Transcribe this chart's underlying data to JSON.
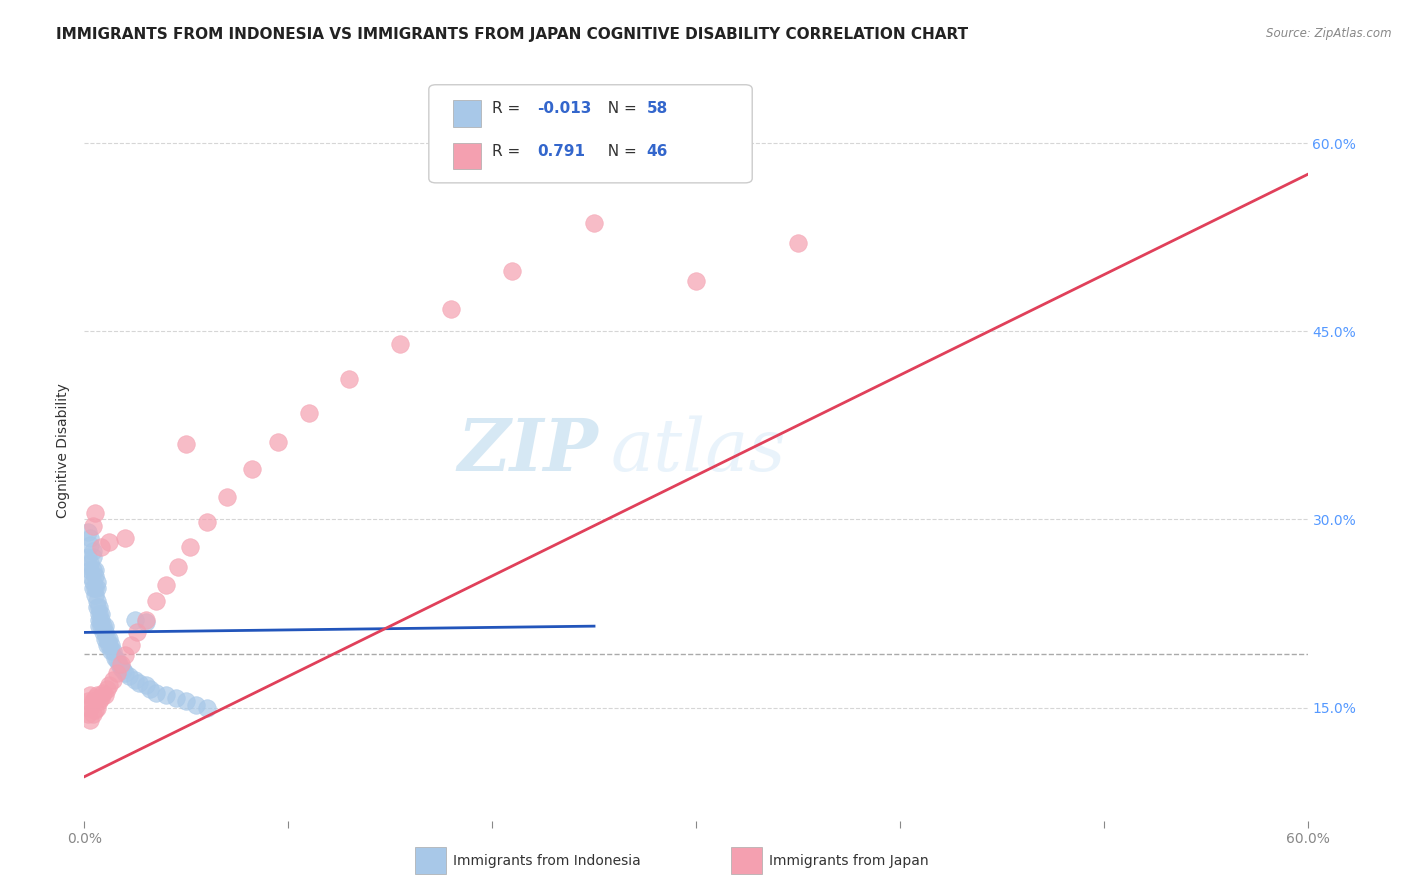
{
  "title": "IMMIGRANTS FROM INDONESIA VS IMMIGRANTS FROM JAPAN COGNITIVE DISABILITY CORRELATION CHART",
  "source": "Source: ZipAtlas.com",
  "ylabel": "Cognitive Disability",
  "xlim": [
    0.0,
    0.6
  ],
  "ylim": [
    0.06,
    0.65
  ],
  "ytick_labels_right": [
    "15.0%",
    "30.0%",
    "45.0%",
    "60.0%"
  ],
  "ytick_positions_right": [
    0.15,
    0.3,
    0.45,
    0.6
  ],
  "indonesia_color": "#a8c8e8",
  "japan_color": "#f4a0b0",
  "indonesia_line_color": "#2255bb",
  "japan_line_color": "#e0405a",
  "indonesia_R": -0.013,
  "indonesia_N": 58,
  "japan_R": 0.791,
  "japan_N": 46,
  "legend_label_indonesia": "Immigrants from Indonesia",
  "legend_label_japan": "Immigrants from Japan",
  "watermark_zip": "ZIP",
  "watermark_atlas": "atlas",
  "grid_color": "#cccccc",
  "background_color": "#ffffff",
  "title_fontsize": 11,
  "axis_label_fontsize": 10,
  "tick_fontsize": 10,
  "indo_scatter_x": [
    0.002,
    0.002,
    0.003,
    0.003,
    0.003,
    0.003,
    0.003,
    0.004,
    0.004,
    0.004,
    0.004,
    0.004,
    0.005,
    0.005,
    0.005,
    0.005,
    0.006,
    0.006,
    0.006,
    0.006,
    0.007,
    0.007,
    0.007,
    0.007,
    0.008,
    0.008,
    0.008,
    0.009,
    0.009,
    0.01,
    0.01,
    0.01,
    0.011,
    0.011,
    0.012,
    0.012,
    0.013,
    0.013,
    0.014,
    0.015,
    0.016,
    0.017,
    0.018,
    0.019,
    0.02,
    0.022,
    0.025,
    0.027,
    0.03,
    0.032,
    0.035,
    0.04,
    0.045,
    0.05,
    0.055,
    0.06,
    0.025,
    0.03
  ],
  "indo_scatter_y": [
    0.27,
    0.29,
    0.28,
    0.285,
    0.265,
    0.26,
    0.255,
    0.27,
    0.275,
    0.26,
    0.245,
    0.25,
    0.255,
    0.24,
    0.245,
    0.26,
    0.23,
    0.235,
    0.245,
    0.25,
    0.215,
    0.22,
    0.225,
    0.23,
    0.215,
    0.22,
    0.225,
    0.21,
    0.215,
    0.205,
    0.21,
    0.215,
    0.2,
    0.205,
    0.2,
    0.205,
    0.195,
    0.2,
    0.195,
    0.19,
    0.188,
    0.185,
    0.182,
    0.18,
    0.178,
    0.175,
    0.172,
    0.17,
    0.168,
    0.165,
    0.162,
    0.16,
    0.158,
    0.155,
    0.152,
    0.15,
    0.22,
    0.218
  ],
  "japan_scatter_x": [
    0.002,
    0.002,
    0.003,
    0.003,
    0.003,
    0.004,
    0.004,
    0.005,
    0.005,
    0.006,
    0.006,
    0.007,
    0.008,
    0.009,
    0.01,
    0.011,
    0.012,
    0.014,
    0.016,
    0.018,
    0.02,
    0.023,
    0.026,
    0.03,
    0.035,
    0.04,
    0.046,
    0.052,
    0.06,
    0.07,
    0.082,
    0.095,
    0.11,
    0.13,
    0.155,
    0.18,
    0.21,
    0.25,
    0.3,
    0.35,
    0.004,
    0.005,
    0.008,
    0.012,
    0.02,
    0.05
  ],
  "japan_scatter_y": [
    0.145,
    0.155,
    0.14,
    0.15,
    0.16,
    0.145,
    0.155,
    0.148,
    0.158,
    0.15,
    0.16,
    0.155,
    0.158,
    0.162,
    0.16,
    0.165,
    0.168,
    0.172,
    0.178,
    0.185,
    0.192,
    0.2,
    0.21,
    0.22,
    0.235,
    0.248,
    0.262,
    0.278,
    0.298,
    0.318,
    0.34,
    0.362,
    0.385,
    0.412,
    0.44,
    0.468,
    0.498,
    0.536,
    0.49,
    0.52,
    0.295,
    0.305,
    0.278,
    0.282,
    0.285,
    0.36
  ],
  "indo_line_x": [
    0.0,
    0.25
  ],
  "indo_line_y_start": 0.21,
  "indo_line_y_end": 0.215,
  "japan_line_x": [
    0.0,
    0.6
  ],
  "japan_line_y_start": 0.095,
  "japan_line_y_end": 0.575,
  "dashed_line_y": 0.193,
  "dashed_line_xstart": 0.0,
  "dashed_line_xend": 0.6
}
